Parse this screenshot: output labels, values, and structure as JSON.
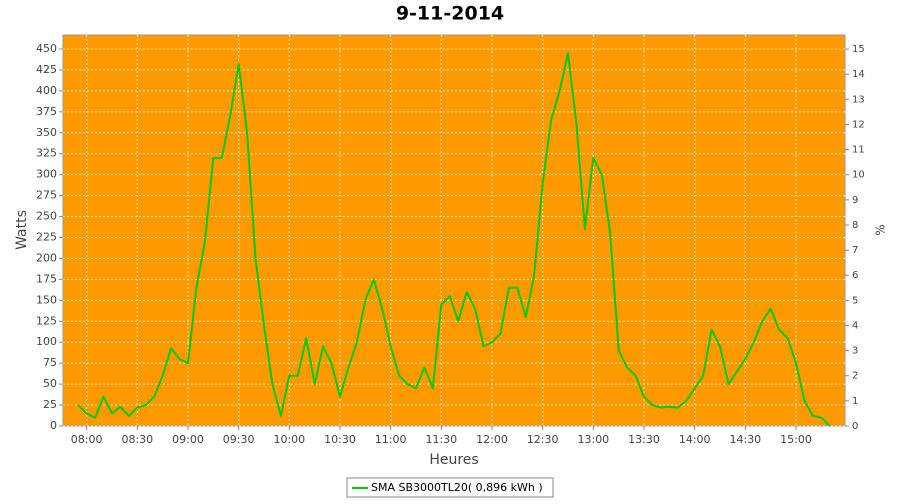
{
  "chart_data": {
    "type": "line",
    "title": "9-11-2014",
    "x_label": "Heures",
    "y_label": "Watts",
    "y2_label": "%",
    "x": [
      "07:55",
      "08:00",
      "08:05",
      "08:10",
      "08:15",
      "08:20",
      "08:25",
      "08:30",
      "08:35",
      "08:40",
      "08:45",
      "08:50",
      "08:55",
      "09:00",
      "09:05",
      "09:10",
      "09:15",
      "09:20",
      "09:25",
      "09:30",
      "09:35",
      "09:40",
      "09:45",
      "09:50",
      "09:55",
      "10:00",
      "10:05",
      "10:10",
      "10:15",
      "10:20",
      "10:25",
      "10:30",
      "10:35",
      "10:40",
      "10:45",
      "10:50",
      "10:55",
      "11:00",
      "11:05",
      "11:10",
      "11:15",
      "11:20",
      "11:25",
      "11:30",
      "11:35",
      "11:40",
      "11:45",
      "11:50",
      "11:55",
      "12:00",
      "12:05",
      "12:10",
      "12:15",
      "12:20",
      "12:25",
      "12:30",
      "12:35",
      "12:40",
      "12:45",
      "12:50",
      "12:55",
      "13:00",
      "13:05",
      "13:10",
      "13:15",
      "13:20",
      "13:25",
      "13:30",
      "13:35",
      "13:40",
      "13:45",
      "13:50",
      "13:55",
      "14:00",
      "14:05",
      "14:10",
      "14:15",
      "14:20",
      "14:25",
      "14:30",
      "14:35",
      "14:40",
      "14:45",
      "14:50",
      "14:55",
      "15:00",
      "15:05",
      "15:10",
      "15:15",
      "15:20"
    ],
    "series": [
      {
        "name": "SMA SB3000TL20( 0,896 kWh )",
        "color": "#00cc00",
        "values": [
          25,
          15,
          10,
          35,
          15,
          23,
          12,
          22,
          25,
          35,
          60,
          93,
          80,
          75,
          165,
          220,
          320,
          320,
          370,
          432,
          350,
          200,
          120,
          50,
          12,
          60,
          60,
          105,
          50,
          95,
          75,
          35,
          70,
          100,
          150,
          175,
          140,
          95,
          60,
          50,
          45,
          70,
          45,
          145,
          155,
          125,
          160,
          140,
          95,
          100,
          110,
          165,
          165,
          130,
          180,
          290,
          365,
          400,
          445,
          360,
          235,
          320,
          300,
          230,
          90,
          70,
          60,
          35,
          25,
          22,
          23,
          22,
          30,
          45,
          60,
          115,
          95,
          50,
          65,
          80,
          100,
          125,
          140,
          115,
          105,
          75,
          30,
          12,
          10,
          0
        ]
      }
    ],
    "xlim": [
      "07:46",
      "15:29"
    ],
    "xticks": [
      "08:00",
      "08:30",
      "09:00",
      "09:30",
      "10:00",
      "10:30",
      "11:00",
      "11:30",
      "12:00",
      "12:30",
      "13:00",
      "13:30",
      "14:00",
      "14:30",
      "15:00"
    ],
    "ylim": [
      0,
      466.7
    ],
    "yticks": [
      0,
      25,
      50,
      75,
      100,
      125,
      150,
      175,
      200,
      225,
      250,
      275,
      300,
      325,
      350,
      375,
      400,
      425,
      450
    ],
    "y2lim": [
      0,
      15.56
    ],
    "y2ticks": [
      0,
      1,
      2,
      3,
      4,
      5,
      6,
      7,
      8,
      9,
      10,
      11,
      12,
      13,
      14,
      15
    ],
    "grid": true,
    "background": "#ff9900"
  }
}
